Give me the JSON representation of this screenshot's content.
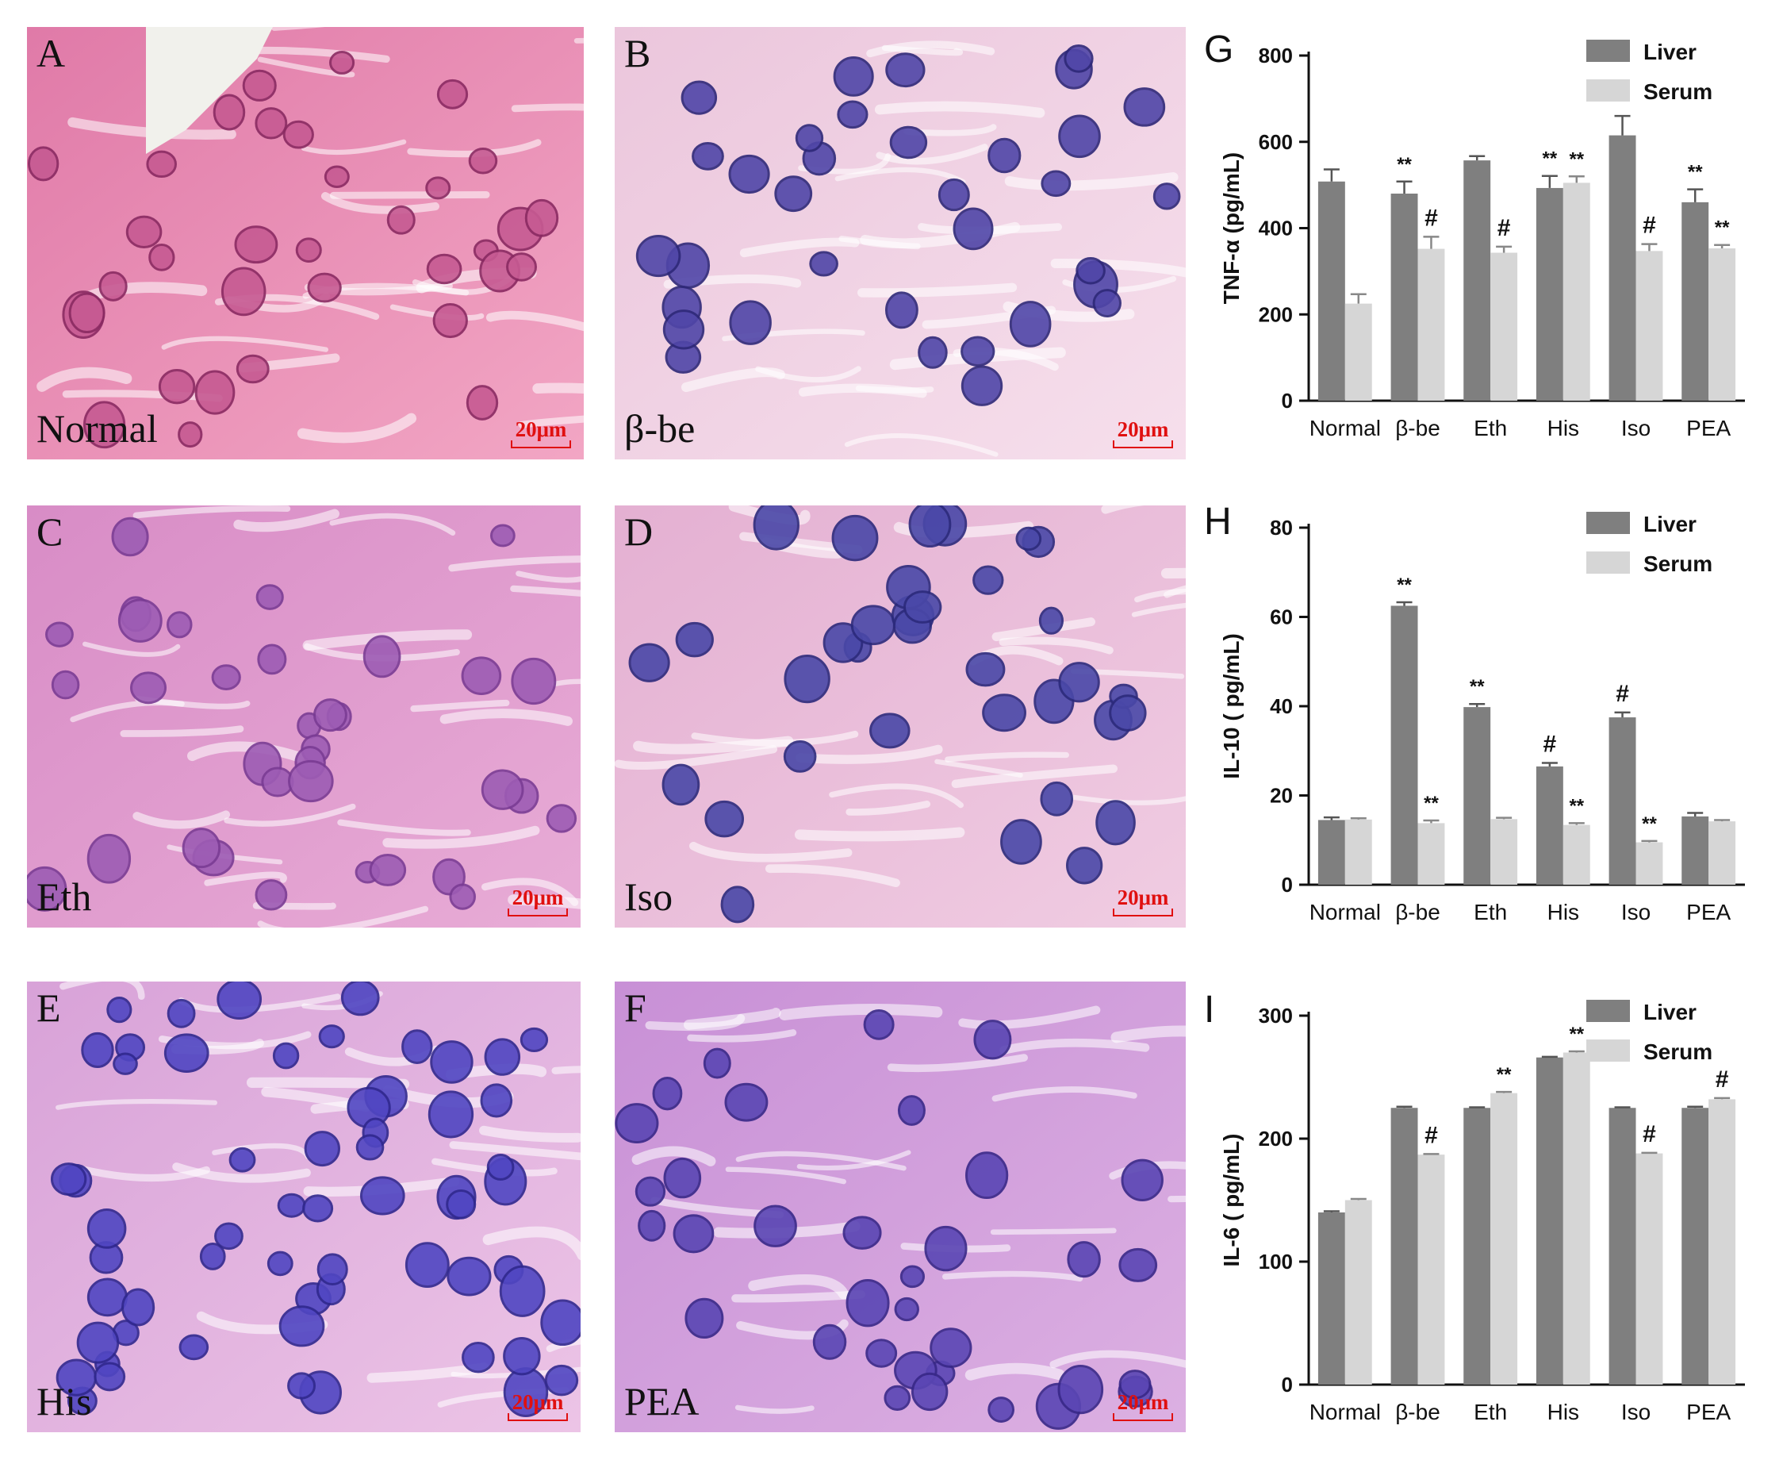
{
  "micrographs": [
    {
      "letter": "A",
      "label": "Normal",
      "scale": "20μm",
      "bg1": "#e07aa8",
      "bg2": "#f2a6c4",
      "nucleus": "#c65a92",
      "nucleus_stroke": "#8a2a62"
    },
    {
      "letter": "B",
      "label": "β-be",
      "scale": "20μm",
      "bg1": "#ebc6dc",
      "bg2": "#f6dfec",
      "nucleus": "#5046a8",
      "nucleus_stroke": "#2e2878"
    },
    {
      "letter": "C",
      "label": "Eth",
      "scale": "20μm",
      "bg1": "#d88cc6",
      "bg2": "#e8acd6",
      "nucleus": "#9d5cb4",
      "nucleus_stroke": "#7a3c94"
    },
    {
      "letter": "D",
      "label": "Iso",
      "scale": "20μm",
      "bg1": "#e4b0d2",
      "bg2": "#f0cce2",
      "nucleus": "#4a48a8",
      "nucleus_stroke": "#2c2a7c"
    },
    {
      "letter": "E",
      "label": "His",
      "scale": "20μm",
      "bg1": "#d8a2d8",
      "bg2": "#ecc4e6",
      "nucleus": "#5046c2",
      "nucleus_stroke": "#30288e"
    },
    {
      "letter": "F",
      "label": "PEA",
      "scale": "20μm",
      "bg1": "#c890d6",
      "bg2": "#dcb0e2",
      "nucleus": "#5a46b4",
      "nucleus_stroke": "#382888"
    }
  ],
  "colors": {
    "liver": "#7f7f7f",
    "serum": "#d6d6d6",
    "axis": "#111111"
  },
  "chart_data": [
    {
      "panel": "G",
      "type": "bar",
      "ylabel": "TNF-α (pg/mL)",
      "ylim": [
        0,
        800
      ],
      "yticks": [
        0,
        200,
        400,
        600,
        800
      ],
      "categories": [
        "Normal",
        "β-be",
        "Eth",
        "His",
        "Iso",
        "PEA"
      ],
      "series": [
        {
          "name": "Liver",
          "values": [
            508,
            480,
            557,
            493,
            615,
            460
          ],
          "errors": [
            28,
            28,
            10,
            28,
            45,
            30
          ],
          "annotations": [
            "",
            "**",
            "",
            "**",
            "",
            "**"
          ]
        },
        {
          "name": "Serum",
          "values": [
            225,
            352,
            343,
            505,
            347,
            353
          ],
          "errors": [
            22,
            28,
            14,
            15,
            16,
            8
          ],
          "annotations": [
            "",
            "#",
            "#",
            "**",
            "#",
            "**"
          ]
        }
      ]
    },
    {
      "panel": "H",
      "type": "bar",
      "ylabel": "IL-10 ( pg/mL)",
      "ylim": [
        0,
        80
      ],
      "yticks": [
        0,
        20,
        40,
        60,
        80
      ],
      "categories": [
        "Normal",
        "β-be",
        "Eth",
        "His",
        "Iso",
        "PEA"
      ],
      "series": [
        {
          "name": "Liver",
          "values": [
            14.5,
            62.5,
            39.8,
            26.5,
            37.5,
            15.3
          ],
          "errors": [
            0.6,
            0.8,
            0.7,
            0.8,
            1.1,
            0.8
          ],
          "annotations": [
            "",
            "**",
            "**",
            "#",
            "#",
            ""
          ]
        },
        {
          "name": "Serum",
          "values": [
            14.6,
            13.8,
            14.7,
            13.4,
            9.5,
            14.2
          ],
          "errors": [
            0.3,
            0.6,
            0.3,
            0.4,
            0.3,
            0.3
          ],
          "annotations": [
            "",
            "**",
            "",
            "**",
            "**",
            ""
          ]
        }
      ]
    },
    {
      "panel": "I",
      "type": "bar",
      "ylabel": "IL-6 ( pg/mL)",
      "ylim": [
        0,
        300
      ],
      "yticks": [
        0,
        100,
        200,
        300
      ],
      "categories": [
        "Normal",
        "β-be",
        "Eth",
        "His",
        "Iso",
        "PEA"
      ],
      "series": [
        {
          "name": "Liver",
          "values": [
            140,
            225,
            225,
            266,
            225,
            225
          ],
          "errors": [
            1,
            1,
            0.5,
            0.5,
            0.5,
            1
          ],
          "annotations": [
            "",
            "",
            "",
            "",
            "",
            ""
          ]
        },
        {
          "name": "Serum",
          "values": [
            150,
            187,
            237,
            270,
            188,
            232
          ],
          "errors": [
            1,
            0.5,
            1,
            1,
            0.5,
            1
          ],
          "annotations": [
            "",
            "#",
            "**",
            "**",
            "#",
            "#"
          ]
        }
      ]
    }
  ]
}
